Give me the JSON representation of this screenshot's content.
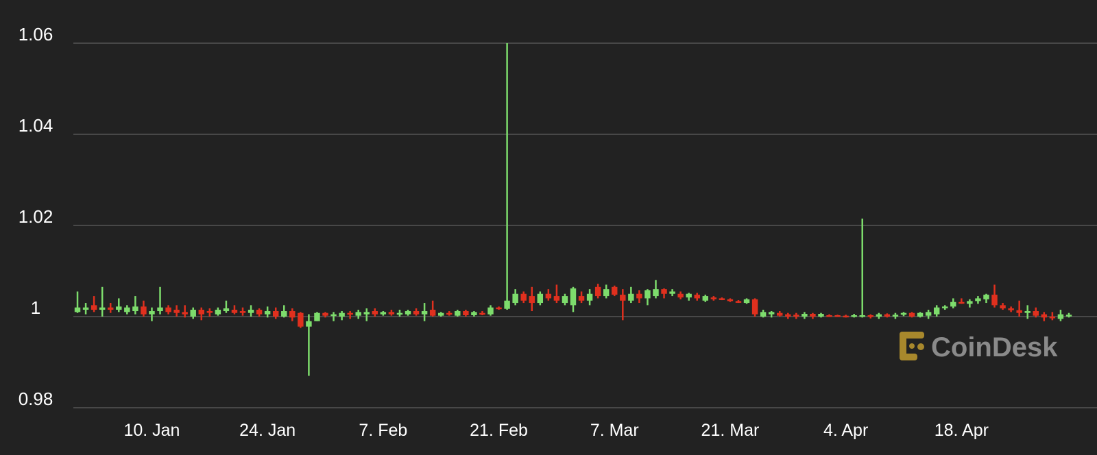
{
  "chart_data": {
    "type": "candlestick",
    "watermark": "CoinDesk",
    "up_color": "#7ddc6c",
    "down_color": "#e0301e",
    "grid": true,
    "ylim": [
      0.98,
      1.06
    ],
    "yticks": [
      0.98,
      1,
      1.02,
      1.04,
      1.06
    ],
    "categories": [
      null,
      null,
      null,
      null,
      null,
      null,
      null,
      null,
      null,
      "10. Jan",
      null,
      null,
      null,
      null,
      null,
      null,
      null,
      null,
      null,
      null,
      null,
      null,
      null,
      "24. Jan",
      null,
      null,
      null,
      null,
      null,
      null,
      null,
      null,
      null,
      null,
      null,
      null,
      null,
      "7. Feb",
      null,
      null,
      null,
      null,
      null,
      null,
      null,
      null,
      null,
      null,
      null,
      null,
      null,
      "21. Feb",
      null,
      null,
      null,
      null,
      null,
      null,
      null,
      null,
      null,
      null,
      null,
      null,
      null,
      "7. Mar",
      null,
      null,
      null,
      null,
      null,
      null,
      null,
      null,
      null,
      null,
      null,
      null,
      null,
      "21. Mar",
      null,
      null,
      null,
      null,
      null,
      null,
      null,
      null,
      null,
      null,
      null,
      null,
      null,
      "4. Apr",
      null,
      null,
      null,
      null,
      null,
      null,
      null,
      null,
      null,
      null,
      null,
      null,
      null,
      "18. Apr",
      null,
      null,
      null,
      null,
      null,
      null,
      null,
      null,
      null,
      null,
      null,
      null,
      null
    ],
    "open": [
      1.001,
      1.0015,
      1.0025,
      1.0015,
      1.002,
      1.0015,
      1.001,
      1.0012,
      1.0022,
      1.0005,
      1.0012,
      1.002,
      1.0015,
      1.001,
      1.0,
      1.0015,
      1.0012,
      1.0005,
      1.0012,
      1.0015,
      1.0012,
      1.0008,
      1.0015,
      1.0005,
      1.0012,
      1.0,
      1.0012,
      1.0008,
      0.9978,
      0.999,
      1.0008,
      1.0002,
      1.0,
      1.0008,
      1.0002,
      1.0005,
      1.0012,
      1.0005,
      1.001,
      1.0005,
      1.0005,
      1.0012,
      1.0005,
      1.0015,
      1.0002,
      1.0008,
      1.0002,
      1.0012,
      1.0003,
      1.0008,
      1.0005,
      1.002,
      1.0017,
      1.003,
      1.005,
      1.0045,
      1.003,
      1.005,
      1.0045,
      1.003,
      1.0025,
      1.0045,
      1.0035,
      1.0065,
      1.0045,
      1.0065,
      1.0048,
      1.0035,
      1.005,
      1.004,
      1.0045,
      1.006,
      1.005,
      1.005,
      1.0042,
      1.0048,
      1.0035,
      1.0042,
      1.004,
      1.0038,
      1.0034,
      1.003,
      1.0038,
      1.0,
      1.0005,
      1.0008,
      1.0005,
      1.0004,
      1.0,
      1.0006,
      1.0,
      1.0003,
      1.0003,
      1.0002,
      1.0,
      1.0,
      1.0003,
      1.0,
      1.0005,
      1.0,
      1.0004,
      1.0008,
      1.0,
      1.0002,
      1.0005,
      1.002,
      1.0022,
      1.0032,
      1.0028,
      1.0034,
      1.0038,
      1.0048,
      1.0025,
      1.0018,
      1.0014,
      1.0008,
      1.0012,
      1.0005,
      1.0,
      0.9995,
      1.0003
    ],
    "high": [
      1.0055,
      1.003,
      1.0045,
      1.0065,
      1.003,
      1.004,
      1.0025,
      1.0045,
      1.0035,
      1.002,
      1.0065,
      1.0025,
      1.0025,
      1.0025,
      1.002,
      1.002,
      1.0018,
      1.002,
      1.0035,
      1.0025,
      1.002,
      1.0025,
      1.0018,
      1.0022,
      1.002,
      1.0025,
      1.0018,
      1.001,
      1.0005,
      1.001,
      1.001,
      1.001,
      1.0012,
      1.0012,
      1.0015,
      1.0018,
      1.0018,
      1.0012,
      1.0015,
      1.0015,
      1.0015,
      1.0018,
      1.003,
      1.0035,
      1.001,
      1.0012,
      1.0015,
      1.0015,
      1.0012,
      1.0012,
      1.0025,
      1.0022,
      1.06,
      1.006,
      1.0055,
      1.0065,
      1.0055,
      1.006,
      1.007,
      1.005,
      1.0065,
      1.0055,
      1.006,
      1.0072,
      1.007,
      1.0068,
      1.006,
      1.0065,
      1.0058,
      1.006,
      1.008,
      1.0062,
      1.006,
      1.0055,
      1.0052,
      1.0052,
      1.0048,
      1.0045,
      1.0042,
      1.004,
      1.0036,
      1.004,
      1.004,
      1.0015,
      1.0012,
      1.0012,
      1.0008,
      1.0008,
      1.001,
      1.0008,
      1.0008,
      1.0005,
      1.0004,
      1.0004,
      1.0006,
      1.0215,
      1.0005,
      1.0008,
      1.0007,
      1.0008,
      1.001,
      1.001,
      1.001,
      1.0015,
      1.0025,
      1.0025,
      1.004,
      1.004,
      1.0038,
      1.0045,
      1.005,
      1.007,
      1.003,
      1.0022,
      1.0035,
      1.0025,
      1.002,
      1.001,
      1.001,
      1.0015,
      1.0008
    ],
    "low": [
      1.0008,
      1.0005,
      1.001,
      1.0,
      1.0008,
      1.001,
      1.0005,
      1.0005,
      1.0,
      0.999,
      1.0005,
      1.0005,
      1.0,
      0.9998,
      0.9995,
      0.9992,
      1.0,
      1.0002,
      1.0008,
      1.0005,
      1.0002,
      1.0,
      1.0,
      0.9998,
      0.9995,
      0.9998,
      0.999,
      0.9975,
      0.987,
      0.999,
      0.9998,
      0.999,
      0.9992,
      0.9995,
      0.9995,
      0.999,
      1.0,
      1.0002,
      1.0002,
      1.0,
      1.0002,
      1.0002,
      0.999,
      1.0,
      1.0,
      1.0002,
      1.0,
      1.0,
      1.0,
      1.0003,
      1.0002,
      1.0015,
      1.0015,
      1.0025,
      1.003,
      1.0012,
      1.0025,
      1.0035,
      1.003,
      1.0025,
      1.001,
      1.003,
      1.0025,
      1.004,
      1.004,
      1.0045,
      0.9992,
      1.003,
      1.003,
      1.0025,
      1.004,
      1.004,
      1.0045,
      1.0038,
      1.0035,
      1.0035,
      1.0032,
      1.0035,
      1.0036,
      1.0032,
      1.003,
      1.0028,
      1.0,
      0.9998,
      0.9998,
      1.0,
      0.9995,
      0.9995,
      0.9995,
      0.9995,
      0.9998,
      1.0001,
      1.0001,
      0.9998,
      0.9998,
      0.9998,
      0.9996,
      0.9995,
      0.9998,
      0.9995,
      1.0001,
      0.9998,
      0.9998,
      0.9995,
      1.0,
      1.0015,
      1.0018,
      1.0028,
      1.002,
      1.0028,
      1.003,
      1.002,
      1.0015,
      1.001,
      1.0,
      0.9995,
      0.9998,
      0.999,
      0.9992,
      0.999,
      0.9998
    ],
    "close": [
      1.002,
      1.002,
      1.0015,
      1.002,
      1.0015,
      1.0022,
      1.002,
      1.0022,
      1.0005,
      1.0012,
      1.002,
      1.001,
      1.0008,
      1.0005,
      1.0015,
      1.0005,
      1.001,
      1.0015,
      1.0018,
      1.0008,
      1.0008,
      1.0015,
      1.0005,
      1.0012,
      1.0,
      1.0012,
      0.9998,
      0.9978,
      0.999,
      1.0008,
      1.0002,
      1.0005,
      1.0008,
      1.0005,
      1.001,
      1.001,
      1.0005,
      1.001,
      1.0005,
      1.0008,
      1.0012,
      1.0005,
      1.0012,
      1.0002,
      1.0008,
      1.0005,
      1.0012,
      1.0003,
      1.001,
      1.0005,
      1.002,
      1.0017,
      1.0035,
      1.005,
      1.0035,
      1.003,
      1.005,
      1.004,
      1.0035,
      1.0045,
      1.0062,
      1.0035,
      1.005,
      1.0045,
      1.006,
      1.0048,
      1.0035,
      1.005,
      1.004,
      1.0058,
      1.006,
      1.005,
      1.0055,
      1.0042,
      1.005,
      1.004,
      1.0045,
      1.004,
      1.0038,
      1.0034,
      1.0032,
      1.0038,
      1.0005,
      1.001,
      1.001,
      1.0002,
      1.0,
      1.0,
      1.0006,
      1.0,
      1.0006,
      1.0002,
      1.0002,
      1.0,
      1.0003,
      1.0003,
      1.0,
      1.0005,
      1.0,
      1.0004,
      1.0008,
      1.0,
      1.0008,
      1.001,
      1.002,
      1.0022,
      1.0032,
      1.003,
      1.0034,
      1.004,
      1.0048,
      1.0025,
      1.0018,
      1.0014,
      1.0008,
      1.0012,
      1.0002,
      0.9998,
      0.9998,
      1.0005,
      1.0004
    ]
  }
}
